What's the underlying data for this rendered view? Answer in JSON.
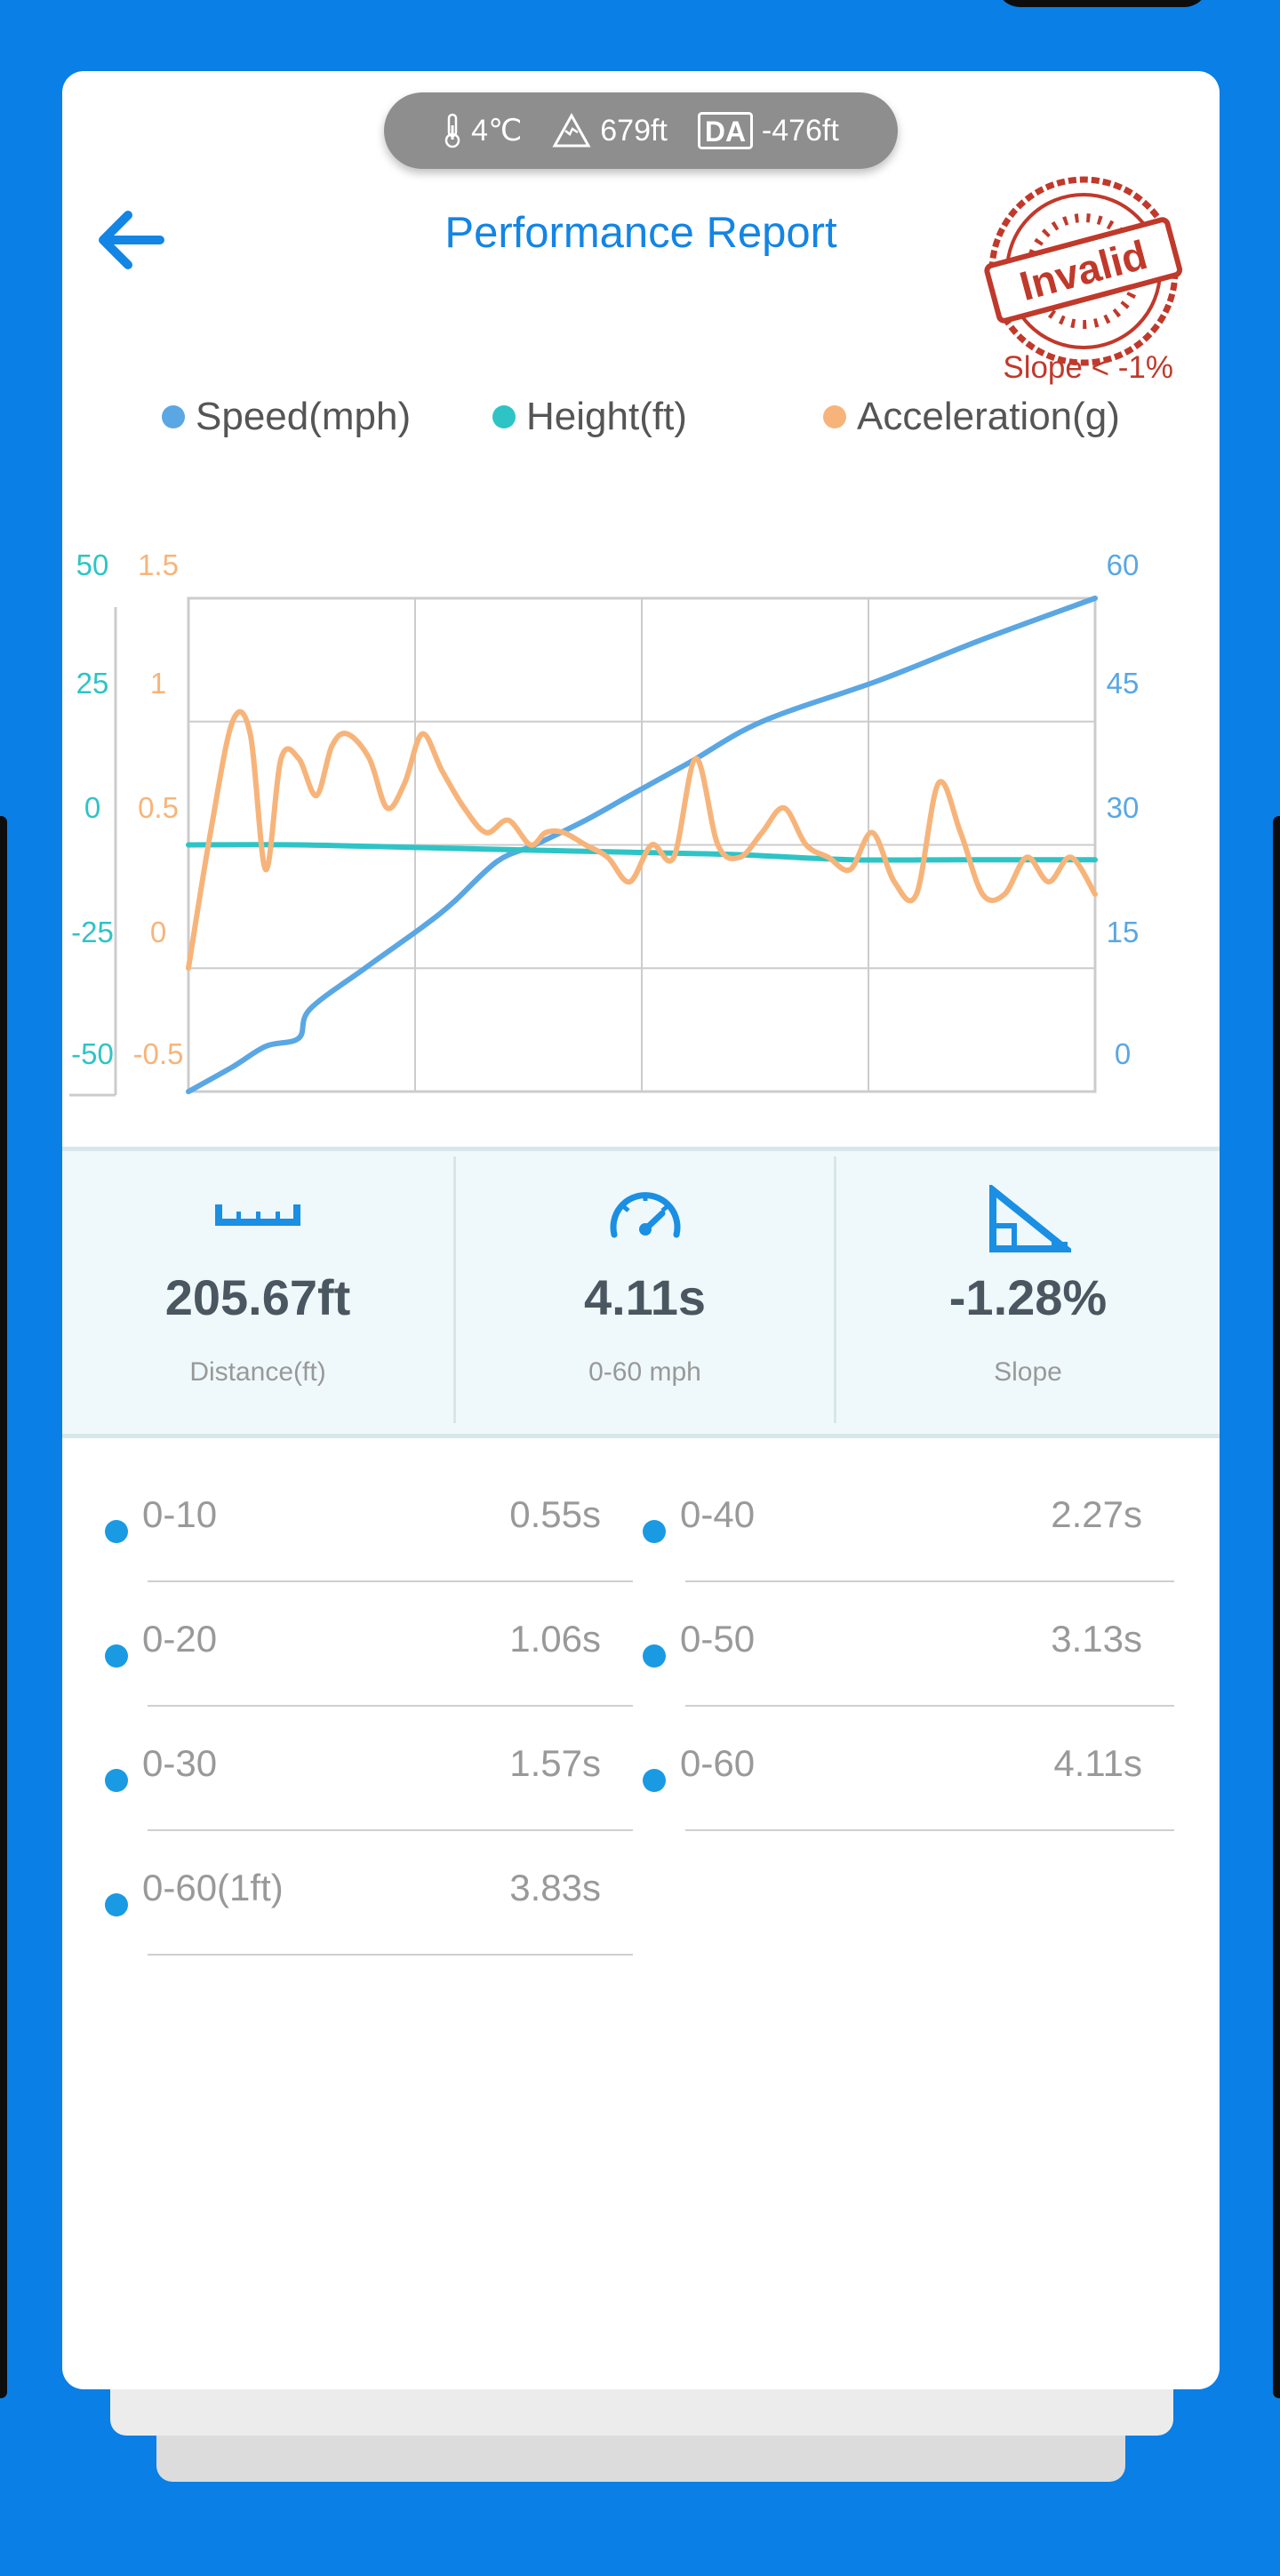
{
  "header": {
    "title": "Performance Report",
    "temperature": "4℃",
    "altitude": "679ft",
    "density_altitude_badge": "DA",
    "density_altitude": "-476ft",
    "stamp_text": "Invalid",
    "stamp_note": "Slope < -1%"
  },
  "colors": {
    "brand_blue": "#0A7FE6",
    "speed": "#5AA7E3",
    "height": "#2EC4C6",
    "acceleration": "#F7B47A",
    "stamp_red": "#C0392B"
  },
  "chart_data": {
    "type": "line",
    "legend": [
      "Speed(mph)",
      "Height(ft)",
      "Acceleration(g)"
    ],
    "axes": {
      "height_left": {
        "ticks": [
          "50",
          "25",
          "0",
          "-25",
          "-50"
        ],
        "range": [
          -50,
          50
        ]
      },
      "acceleration_left": {
        "ticks": [
          "1.5",
          "1",
          "0.5",
          "0",
          "-0.5"
        ],
        "range": [
          -0.5,
          1.5
        ]
      },
      "speed_right": {
        "ticks": [
          "60",
          "45",
          "30",
          "15",
          "0"
        ],
        "range": [
          0,
          60
        ]
      }
    },
    "x_range": [
      0,
      4.11
    ],
    "grid": true,
    "series": [
      {
        "name": "Speed(mph)",
        "axis": "speed_right",
        "x": [
          0,
          0.2,
          0.35,
          0.5,
          0.55,
          0.8,
          1.06,
          1.2,
          1.4,
          1.57,
          1.8,
          2.0,
          2.27,
          2.6,
          3.13,
          3.6,
          4.11
        ],
        "y": [
          0,
          3,
          5.5,
          6.5,
          10,
          15,
          20,
          23,
          28,
          30,
          33,
          36,
          40,
          45,
          50,
          55,
          60
        ]
      },
      {
        "name": "Height(ft)",
        "axis": "height_left",
        "x": [
          0,
          0.5,
          1.0,
          1.5,
          2.0,
          2.5,
          3.0,
          3.5,
          4.11
        ],
        "y": [
          0,
          0,
          -0.5,
          -1,
          -1.5,
          -2,
          -3,
          -3,
          -3
        ]
      },
      {
        "name": "Acceleration(g)",
        "axis": "acceleration_left",
        "x": [
          0,
          0.1,
          0.2,
          0.28,
          0.35,
          0.42,
          0.5,
          0.58,
          0.65,
          0.72,
          0.82,
          0.9,
          0.98,
          1.06,
          1.15,
          1.25,
          1.35,
          1.45,
          1.55,
          1.62,
          1.7,
          1.8,
          1.9,
          2.0,
          2.1,
          2.2,
          2.3,
          2.4,
          2.5,
          2.6,
          2.7,
          2.8,
          2.9,
          3.0,
          3.1,
          3.2,
          3.3,
          3.4,
          3.5,
          3.6,
          3.7,
          3.8,
          3.9,
          4.0,
          4.11
        ],
        "y": [
          0,
          0.55,
          1.0,
          0.95,
          0.4,
          0.85,
          0.85,
          0.7,
          0.9,
          0.95,
          0.85,
          0.65,
          0.75,
          0.95,
          0.8,
          0.65,
          0.55,
          0.6,
          0.5,
          0.55,
          0.55,
          0.5,
          0.45,
          0.35,
          0.5,
          0.45,
          0.85,
          0.5,
          0.45,
          0.55,
          0.65,
          0.5,
          0.45,
          0.4,
          0.55,
          0.35,
          0.3,
          0.75,
          0.55,
          0.3,
          0.3,
          0.45,
          0.35,
          0.45,
          0.3
        ]
      }
    ]
  },
  "stats": [
    {
      "icon": "ruler-icon",
      "value": "205.67ft",
      "label": "Distance(ft)"
    },
    {
      "icon": "speedometer-icon",
      "value": "4.11s",
      "label": "0-60 mph"
    },
    {
      "icon": "slope-icon",
      "value": "-1.28%",
      "label": "Slope"
    }
  ],
  "splits": [
    {
      "name": "0-10",
      "time": "0.55s"
    },
    {
      "name": "0-40",
      "time": "2.27s"
    },
    {
      "name": "0-20",
      "time": "1.06s"
    },
    {
      "name": "0-50",
      "time": "3.13s"
    },
    {
      "name": "0-30",
      "time": "1.57s"
    },
    {
      "name": "0-60",
      "time": "4.11s"
    },
    {
      "name": "0-60(1ft)",
      "time": "3.83s"
    }
  ]
}
